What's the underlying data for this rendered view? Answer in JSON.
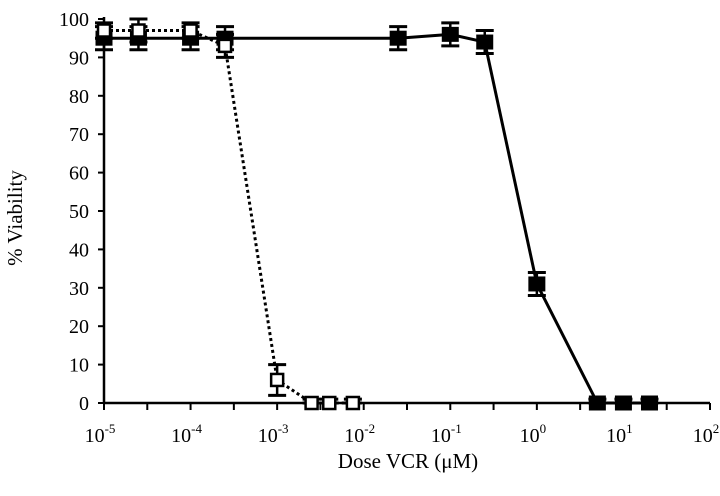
{
  "chart_data": {
    "type": "scatter",
    "title": "",
    "xlabel": "Dose VCR (μM)",
    "ylabel": "% Viability",
    "x_scale": "log",
    "xlim": [
      1e-05,
      100
    ],
    "ylim": [
      0,
      100
    ],
    "yticks": [
      0,
      10,
      20,
      30,
      40,
      50,
      60,
      70,
      80,
      90,
      100
    ],
    "ytick_labels": [
      "0",
      "10",
      "20",
      "30",
      "40",
      "50",
      "60",
      "70",
      "80",
      "90",
      "100"
    ],
    "xtick_labels": [
      {
        "base": "10",
        "exp": "-5"
      },
      {
        "base": "10",
        "exp": "-4"
      },
      {
        "base": "10",
        "exp": "-3"
      },
      {
        "base": "10",
        "exp": "-2"
      },
      {
        "base": "10",
        "exp": "-1"
      },
      {
        "base": "10",
        "exp": "0"
      },
      {
        "base": "10",
        "exp": "1"
      },
      {
        "base": "10",
        "exp": "2"
      }
    ],
    "grid": false,
    "legend": "none",
    "series": [
      {
        "style": "solid",
        "marker": "filled-square",
        "color": "#000000",
        "x": [
          1e-05,
          2.5e-05,
          0.0001,
          0.00025,
          0.025,
          0.1,
          0.25,
          1,
          5,
          10,
          20
        ],
        "y": [
          95,
          95,
          95,
          95,
          95,
          96,
          94,
          31,
          0,
          0,
          0
        ],
        "err": [
          3,
          3,
          3,
          3,
          3,
          3,
          3,
          3,
          1,
          1,
          1
        ]
      },
      {
        "style": "dotted",
        "marker": "open-square",
        "color": "#000000",
        "x": [
          1e-05,
          2.5e-05,
          0.0001,
          0.00025,
          0.001,
          0.0025,
          0.004,
          0.0075
        ],
        "y": [
          97,
          97,
          97,
          93,
          6,
          0,
          0,
          0
        ],
        "err": [
          2,
          3,
          2,
          3,
          4,
          1,
          1,
          1
        ]
      }
    ]
  }
}
